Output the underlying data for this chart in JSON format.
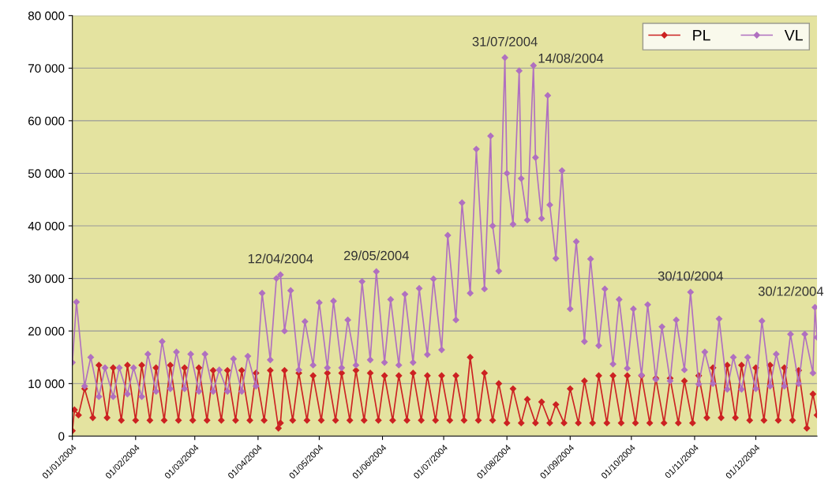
{
  "chart_data": {
    "type": "line",
    "xlim": [
      "2004-01-01",
      "2004-12-31"
    ],
    "xticks": [
      {
        "value": "2004-01-01",
        "label": "01/01/2004"
      },
      {
        "value": "2004-02-01",
        "label": "01/02/2004"
      },
      {
        "value": "2004-03-01",
        "label": "01/03/2004"
      },
      {
        "value": "2004-04-01",
        "label": "01/04/2004"
      },
      {
        "value": "2004-05-01",
        "label": "01/05/2004"
      },
      {
        "value": "2004-06-01",
        "label": "01/06/2004"
      },
      {
        "value": "2004-07-01",
        "label": "01/07/2004"
      },
      {
        "value": "2004-08-01",
        "label": "01/08/2004"
      },
      {
        "value": "2004-09-01",
        "label": "01/09/2004"
      },
      {
        "value": "2004-10-01",
        "label": "01/10/2004"
      },
      {
        "value": "2004-11-01",
        "label": "01/11/2004"
      },
      {
        "value": "2004-12-01",
        "label": "01/12/2004"
      }
    ],
    "ylim": [
      0,
      80000
    ],
    "yticks": [
      0,
      {
        "value": 10000,
        "label": "10 000"
      },
      {
        "value": 20000,
        "label": "20 000"
      },
      {
        "value": 30000,
        "label": "30 000"
      },
      {
        "value": 40000,
        "label": "40 000"
      },
      {
        "value": 50000,
        "label": "50 000"
      },
      {
        "value": 60000,
        "label": "60 000"
      },
      {
        "value": 70000,
        "label": "70 000"
      },
      {
        "value": 80000,
        "label": "80 000"
      }
    ],
    "grid": "y",
    "legend": "top right",
    "marker": "diamond",
    "line_style": "solid",
    "series": [
      {
        "name": "PL",
        "color": "#cc2222",
        "x": [
          "2004-01-01",
          "2004-01-02",
          "2004-01-04",
          "2004-01-07",
          "2004-01-11",
          "2004-01-14",
          "2004-01-18",
          "2004-01-21",
          "2004-01-25",
          "2004-01-28",
          "2004-02-01",
          "2004-02-04",
          "2004-02-08",
          "2004-02-11",
          "2004-02-15",
          "2004-02-18",
          "2004-02-22",
          "2004-02-25",
          "2004-02-29",
          "2004-03-03",
          "2004-03-07",
          "2004-03-10",
          "2004-03-14",
          "2004-03-17",
          "2004-03-21",
          "2004-03-24",
          "2004-03-28",
          "2004-03-31",
          "2004-04-04",
          "2004-04-07",
          "2004-04-11",
          "2004-04-12",
          "2004-04-14",
          "2004-04-18",
          "2004-04-21",
          "2004-04-25",
          "2004-04-28",
          "2004-05-02",
          "2004-05-05",
          "2004-05-09",
          "2004-05-12",
          "2004-05-16",
          "2004-05-19",
          "2004-05-23",
          "2004-05-26",
          "2004-05-30",
          "2004-06-02",
          "2004-06-06",
          "2004-06-09",
          "2004-06-13",
          "2004-06-16",
          "2004-06-20",
          "2004-06-23",
          "2004-06-27",
          "2004-06-30",
          "2004-07-04",
          "2004-07-07",
          "2004-07-11",
          "2004-07-14",
          "2004-07-18",
          "2004-07-21",
          "2004-07-25",
          "2004-07-28",
          "2004-08-01",
          "2004-08-04",
          "2004-08-08",
          "2004-08-11",
          "2004-08-15",
          "2004-08-18",
          "2004-08-22",
          "2004-08-25",
          "2004-08-29",
          "2004-09-01",
          "2004-09-05",
          "2004-09-08",
          "2004-09-12",
          "2004-09-15",
          "2004-09-19",
          "2004-09-22",
          "2004-09-26",
          "2004-09-29",
          "2004-10-03",
          "2004-10-06",
          "2004-10-10",
          "2004-10-13",
          "2004-10-17",
          "2004-10-20",
          "2004-10-24",
          "2004-10-27",
          "2004-10-31",
          "2004-11-03",
          "2004-11-07",
          "2004-11-10",
          "2004-11-14",
          "2004-11-17",
          "2004-11-21",
          "2004-11-24",
          "2004-11-28",
          "2004-12-01",
          "2004-12-05",
          "2004-12-08",
          "2004-12-12",
          "2004-12-15",
          "2004-12-19",
          "2004-12-22",
          "2004-12-26",
          "2004-12-29",
          "2004-12-31"
        ],
        "values": [
          1000,
          5000,
          4000,
          9000,
          3500,
          13500,
          3500,
          13000,
          3000,
          13500,
          3000,
          13500,
          3000,
          13000,
          3000,
          13500,
          3000,
          13000,
          3000,
          13000,
          3000,
          12500,
          3000,
          12500,
          3000,
          12500,
          3000,
          12000,
          3000,
          12500,
          1500,
          2500,
          12500,
          3000,
          12000,
          3000,
          11500,
          3000,
          12000,
          3000,
          12000,
          3000,
          12500,
          3000,
          12000,
          3000,
          11500,
          3000,
          11500,
          3000,
          12000,
          3000,
          11500,
          3000,
          11500,
          3000,
          11500,
          3000,
          15000,
          3000,
          12000,
          3000,
          10000,
          2500,
          9000,
          2500,
          7000,
          2500,
          6500,
          2500,
          6000,
          2500,
          9000,
          2500,
          10500,
          2500,
          11500,
          2500,
          11500,
          2500,
          11500,
          2500,
          11500,
          2500,
          11000,
          2500,
          11000,
          2500,
          10500,
          2500,
          11500,
          3500,
          13000,
          3500,
          13500,
          3500,
          13500,
          3000,
          13000,
          3000,
          13500,
          3000,
          13000,
          3000,
          12500,
          1500,
          8000,
          4000
        ]
      },
      {
        "name": "VL",
        "color": "#b070c0",
        "x": [
          "2004-01-01",
          "2004-01-03",
          "2004-01-07",
          "2004-01-10",
          "2004-01-14",
          "2004-01-17",
          "2004-01-21",
          "2004-01-24",
          "2004-01-28",
          "2004-01-31",
          "2004-02-04",
          "2004-02-07",
          "2004-02-11",
          "2004-02-14",
          "2004-02-18",
          "2004-02-21",
          "2004-02-25",
          "2004-02-28",
          "2004-03-03",
          "2004-03-06",
          "2004-03-10",
          "2004-03-13",
          "2004-03-17",
          "2004-03-20",
          "2004-03-24",
          "2004-03-27",
          "2004-03-31",
          "2004-04-03",
          "2004-04-07",
          "2004-04-10",
          "2004-04-12",
          "2004-04-14",
          "2004-04-17",
          "2004-04-21",
          "2004-04-24",
          "2004-04-28",
          "2004-05-01",
          "2004-05-05",
          "2004-05-08",
          "2004-05-12",
          "2004-05-15",
          "2004-05-19",
          "2004-05-22",
          "2004-05-26",
          "2004-05-29",
          "2004-06-02",
          "2004-06-05",
          "2004-06-09",
          "2004-06-12",
          "2004-06-16",
          "2004-06-19",
          "2004-06-23",
          "2004-06-26",
          "2004-06-30",
          "2004-07-03",
          "2004-07-07",
          "2004-07-10",
          "2004-07-14",
          "2004-07-17",
          "2004-07-21",
          "2004-07-24",
          "2004-07-25",
          "2004-07-28",
          "2004-07-31",
          "2004-08-01",
          "2004-08-04",
          "2004-08-07",
          "2004-08-08",
          "2004-08-11",
          "2004-08-14",
          "2004-08-15",
          "2004-08-18",
          "2004-08-21",
          "2004-08-22",
          "2004-08-25",
          "2004-08-28",
          "2004-09-01",
          "2004-09-04",
          "2004-09-08",
          "2004-09-11",
          "2004-09-15",
          "2004-09-18",
          "2004-09-22",
          "2004-09-25",
          "2004-09-29",
          "2004-10-02",
          "2004-10-06",
          "2004-10-09",
          "2004-10-13",
          "2004-10-16",
          "2004-10-20",
          "2004-10-23",
          "2004-10-27",
          "2004-10-30",
          "2004-11-03",
          "2004-11-06",
          "2004-11-10",
          "2004-11-13",
          "2004-11-17",
          "2004-11-20",
          "2004-11-24",
          "2004-11-27",
          "2004-12-01",
          "2004-12-04",
          "2004-12-08",
          "2004-12-11",
          "2004-12-15",
          "2004-12-18",
          "2004-12-22",
          "2004-12-25",
          "2004-12-29",
          "2004-12-30",
          "2004-12-31"
        ],
        "values": [
          14000,
          25500,
          9500,
          15000,
          7500,
          13000,
          7500,
          13000,
          8000,
          13000,
          7500,
          15600,
          8500,
          18000,
          9000,
          16000,
          9000,
          15600,
          8500,
          15600,
          8500,
          12600,
          8500,
          14700,
          8500,
          15200,
          9500,
          27200,
          14500,
          30000,
          30700,
          20000,
          27700,
          12600,
          21800,
          13500,
          25400,
          13000,
          25700,
          13000,
          22100,
          13500,
          29400,
          14500,
          31300,
          14000,
          26000,
          13500,
          27000,
          14000,
          28100,
          15500,
          29900,
          16400,
          38200,
          22100,
          44400,
          27200,
          54600,
          28000,
          57100,
          40000,
          31400,
          72000,
          50000,
          40300,
          69500,
          49000,
          41100,
          70500,
          53000,
          41400,
          64800,
          44000,
          33800,
          50500,
          24200,
          37000,
          18000,
          33700,
          17200,
          28000,
          13700,
          26000,
          12900,
          24200,
          11600,
          25000,
          10800,
          20800,
          10500,
          22100,
          12600,
          27400,
          9900,
          16000,
          10000,
          22300,
          8900,
          15000,
          8900,
          15000,
          9000,
          21900,
          9500,
          15600,
          9500,
          19400,
          10000,
          19400,
          12000,
          24500,
          18800
        ]
      }
    ],
    "annotations": [
      {
        "text": "12/04/2004",
        "x": "2004-04-12",
        "y": 30700
      },
      {
        "text": "29/05/2004",
        "x": "2004-05-29",
        "y": 31300
      },
      {
        "text": "31/07/2004",
        "x": "2004-07-31",
        "y": 72000
      },
      {
        "text": "14/08/2004",
        "x": "2004-08-14",
        "y": 70500
      },
      {
        "text": "30/10/2004",
        "x": "2004-10-30",
        "y": 27400
      },
      {
        "text": "30/12/2004",
        "x": "2004-12-30",
        "y": 24500
      }
    ]
  }
}
